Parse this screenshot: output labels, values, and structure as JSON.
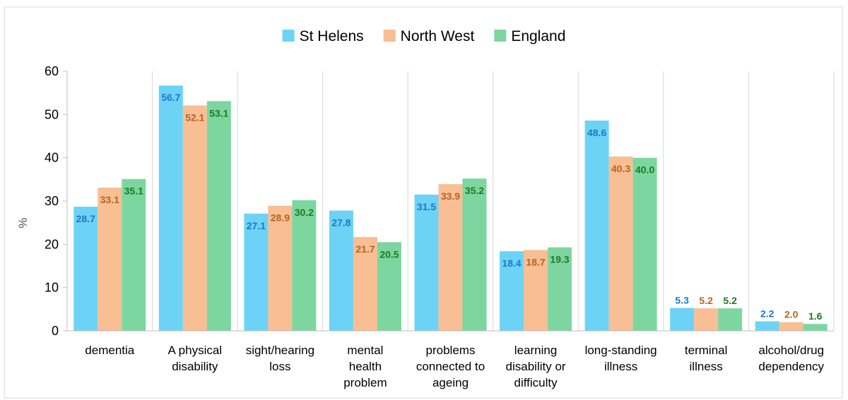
{
  "chart_data": {
    "type": "bar",
    "categories": [
      [
        "dementia"
      ],
      [
        "A physical",
        "disability"
      ],
      [
        "sight/hearing",
        "loss"
      ],
      [
        "mental",
        "health",
        "problem"
      ],
      [
        "problems",
        "connected to",
        "ageing"
      ],
      [
        "learning",
        "disability or",
        "difficulty"
      ],
      [
        "long-standing",
        "illness"
      ],
      [
        "terminal",
        "illness"
      ],
      [
        "alcohol/drug",
        "dependency"
      ]
    ],
    "series": [
      {
        "name": "St Helens",
        "color": "#6DD3F6",
        "label_color": "#1F77C8",
        "values": [
          28.7,
          56.7,
          27.1,
          27.8,
          31.5,
          18.4,
          48.6,
          5.3,
          2.2
        ],
        "labels": [
          "28.7",
          "56.7",
          "27.1",
          "27.8",
          "31.5",
          "18.4",
          "48.6",
          "5.3",
          "2.2"
        ]
      },
      {
        "name": "North West",
        "color": "#F8BE94",
        "label_color": "#B5651D",
        "values": [
          33.1,
          52.1,
          28.9,
          21.7,
          33.9,
          18.7,
          40.3,
          5.2,
          2.0
        ],
        "labels": [
          "33.1",
          "52.1",
          "28.9",
          "21.7",
          "33.9",
          "18.7",
          "40.3",
          "5.2",
          "2.0"
        ]
      },
      {
        "name": "England",
        "color": "#7DD6A0",
        "label_color": "#1E7A1E",
        "values": [
          35.1,
          53.1,
          30.2,
          20.5,
          35.2,
          19.3,
          40.0,
          5.2,
          1.6
        ],
        "labels": [
          "35.1",
          "53.1",
          "30.2",
          "20.5",
          "35.2",
          "19.3",
          "40.0",
          "5.2",
          "1.6"
        ]
      }
    ],
    "yticks": [
      "0",
      "10",
      "20",
      "30",
      "40",
      "50",
      "60"
    ],
    "ylim": [
      0,
      60
    ],
    "ylabel": "%",
    "xlabel": "",
    "title": "",
    "grid": "vertical-category-separators",
    "legend_position": "top"
  }
}
